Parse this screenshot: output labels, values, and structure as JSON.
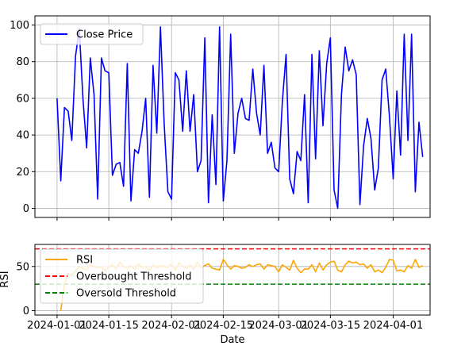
{
  "chart_data": [
    {
      "type": "line",
      "title": "",
      "xlabel": "",
      "ylabel": "",
      "xlim": [
        "2023-12-26",
        "2024-04-11"
      ],
      "ylim": [
        -5,
        105
      ],
      "yticks": [
        0,
        20,
        40,
        60,
        80,
        100
      ],
      "grid": true,
      "legend": "upper left",
      "series": [
        {
          "name": "Close Price",
          "color": "#0000ff",
          "x_start": "2024-01-01",
          "x_step_days": 1,
          "values": [
            60,
            15,
            55,
            53,
            37,
            83,
            98,
            60,
            33,
            82,
            62,
            5,
            82,
            75,
            74,
            18,
            24,
            25,
            12,
            79,
            4,
            32,
            30,
            42,
            60,
            6,
            78,
            41,
            99,
            46,
            9,
            5,
            74,
            70,
            42,
            75,
            42,
            62,
            20,
            26,
            93,
            3,
            51,
            13,
            99,
            4,
            26,
            95,
            30,
            52,
            60,
            49,
            48,
            76,
            52,
            40,
            78,
            30,
            36,
            22,
            20,
            58,
            84,
            16,
            8,
            31,
            26,
            62,
            3,
            84,
            27,
            86,
            45,
            79,
            93,
            10,
            0,
            62,
            88,
            75,
            81,
            73,
            2,
            34,
            49,
            38,
            10,
            22,
            70,
            76,
            50,
            16,
            64,
            29,
            95,
            37,
            95,
            9,
            47,
            28
          ]
        }
      ]
    },
    {
      "type": "line",
      "title": "",
      "xlabel": "Date",
      "ylabel": "RSI",
      "xlim": [
        "2023-12-26",
        "2024-04-11"
      ],
      "ylim": [
        -5,
        75
      ],
      "yticks": [
        0,
        50
      ],
      "xticks": [
        "2024-01-01",
        "2024-01-15",
        "2024-02-01",
        "2024-02-15",
        "2024-03-01",
        "2024-03-15",
        "2024-04-01"
      ],
      "grid": true,
      "legend": "upper left",
      "series": [
        {
          "name": "RSI",
          "color": "#ffa500",
          "x_start": "2024-01-01",
          "x_step_days": 1,
          "values": [
            null,
            0,
            30,
            42,
            40,
            45,
            50,
            48,
            46,
            52,
            50,
            48,
            50,
            45,
            49,
            52,
            47,
            55,
            50,
            48,
            51,
            47,
            53,
            49,
            50,
            46,
            52,
            48,
            51,
            50,
            49,
            53,
            46,
            54,
            50,
            48,
            52,
            47,
            55,
            49,
            51,
            53,
            48,
            47,
            46,
            58,
            52,
            47,
            51,
            50,
            48,
            49,
            52,
            50,
            52,
            53,
            47,
            52,
            51,
            50,
            44,
            52,
            49,
            46,
            57,
            48,
            43,
            47,
            47,
            52,
            44,
            54,
            46,
            52,
            55,
            56,
            46,
            44,
            52,
            56,
            54,
            55,
            52,
            53,
            48,
            52,
            44,
            46,
            43,
            49,
            58,
            57,
            45,
            46,
            44,
            51,
            48,
            58,
            49,
            51
          ]
        },
        {
          "name": "Overbought Threshold",
          "color": "#ff0000",
          "style": "dashed",
          "value": 70
        },
        {
          "name": "Oversold Threshold",
          "color": "#008000",
          "style": "dashed",
          "value": 30
        }
      ]
    }
  ]
}
